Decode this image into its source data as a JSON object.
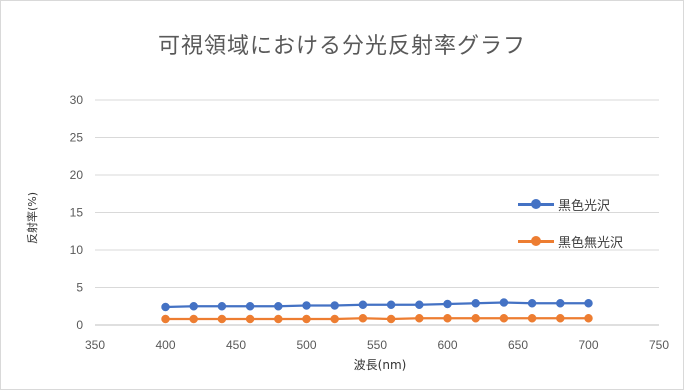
{
  "chart_data": {
    "type": "line",
    "title": "可視領域における分光反射率グラフ",
    "xlabel": "波長(nm)",
    "ylabel": "反射率(%)",
    "xlim": [
      350,
      750
    ],
    "ylim": [
      0,
      30
    ],
    "xticks": [
      "350",
      "400",
      "450",
      "500",
      "550",
      "600",
      "650",
      "700",
      "750"
    ],
    "yticks": [
      "0",
      "5",
      "10",
      "15",
      "20",
      "25",
      "30"
    ],
    "grid": "horizontal",
    "legend_position": "right",
    "x": [
      400,
      420,
      440,
      460,
      480,
      500,
      520,
      540,
      560,
      580,
      600,
      620,
      640,
      660,
      680,
      700
    ],
    "series": [
      {
        "name": "黒色光沢",
        "color": "#4472c4",
        "values": [
          2.4,
          2.5,
          2.5,
          2.5,
          2.5,
          2.6,
          2.6,
          2.7,
          2.7,
          2.7,
          2.8,
          2.9,
          3.0,
          2.9,
          2.9,
          2.9
        ]
      },
      {
        "name": "黒色無光沢",
        "color": "#ed7d31",
        "values": [
          0.8,
          0.8,
          0.8,
          0.8,
          0.8,
          0.8,
          0.8,
          0.9,
          0.8,
          0.9,
          0.9,
          0.9,
          0.9,
          0.9,
          0.9,
          0.9
        ]
      }
    ]
  }
}
